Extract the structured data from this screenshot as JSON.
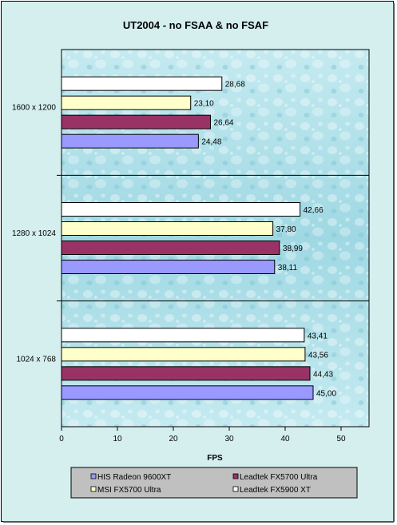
{
  "chart_data": {
    "type": "bar",
    "orientation": "horizontal",
    "title": "UT2004  - no FSAA & no FSAF",
    "xlabel": "FPS",
    "ylabel": "",
    "xlim": [
      0,
      55
    ],
    "xticks": [
      0,
      10,
      20,
      30,
      40,
      50
    ],
    "categories": [
      "1600 x 1200",
      "1280 x 1024",
      "1024 x 768"
    ],
    "series": [
      {
        "name": "HIS Radeon 9600XT",
        "color": "#9999ff",
        "values": [
          24.48,
          38.11,
          45.0
        ],
        "labels": [
          "24,48",
          "38,11",
          "45,00"
        ]
      },
      {
        "name": "Leadtek FX5700 Ultra",
        "color": "#993366",
        "values": [
          26.64,
          38.99,
          44.43
        ],
        "labels": [
          "26,64",
          "38,99",
          "44,43"
        ]
      },
      {
        "name": "MSI FX5700 Ultra",
        "color": "#ffffcc",
        "values": [
          23.1,
          37.8,
          43.56
        ],
        "labels": [
          "23,10",
          "37,80",
          "43,56"
        ]
      },
      {
        "name": "Leadtek FX5900 XT",
        "color": "#ffffff",
        "values": [
          28.68,
          42.66,
          43.41
        ],
        "labels": [
          "28,68",
          "42,66",
          "43,41"
        ]
      }
    ],
    "grid": false,
    "legend_position": "bottom",
    "colors": {
      "background": "#d4efee",
      "plot_area": "#a8dde6",
      "legend_background": "#c0c0c0"
    }
  }
}
